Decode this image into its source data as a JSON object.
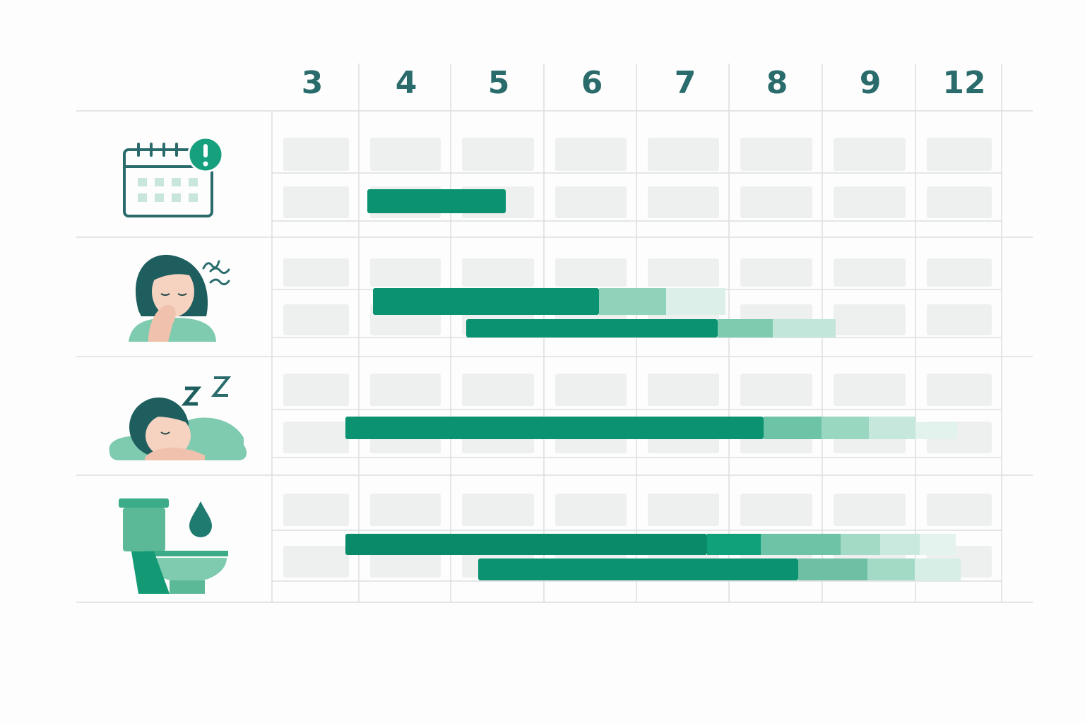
{
  "columns": [
    "3",
    "4",
    "5",
    "6",
    "7",
    "8",
    "9",
    "12"
  ]
}
